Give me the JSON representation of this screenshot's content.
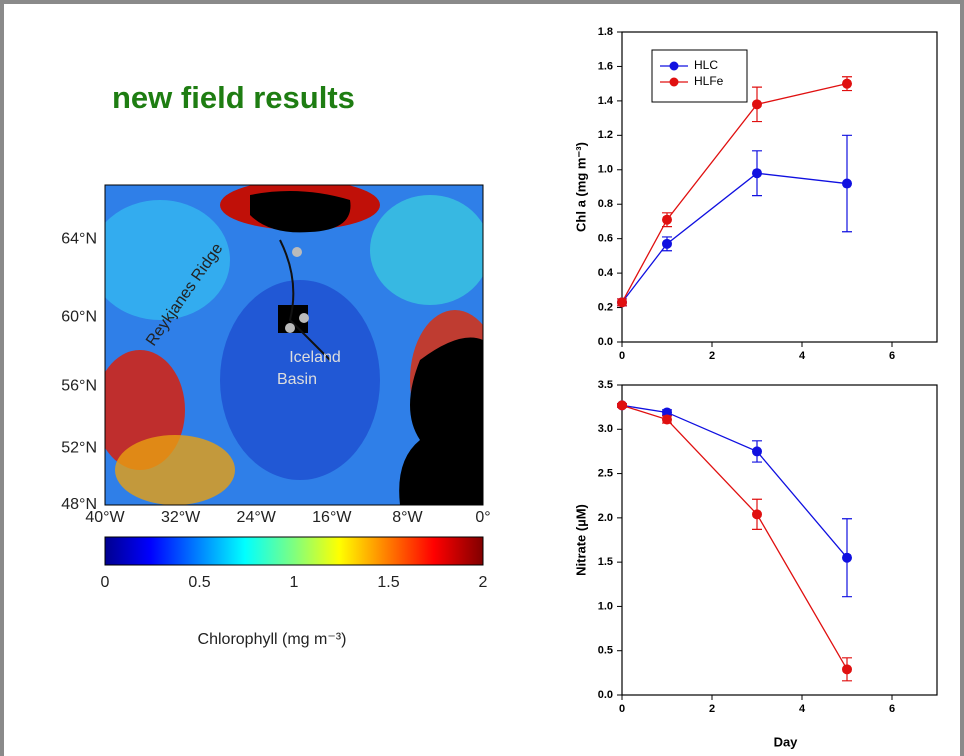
{
  "slide_title": "new field results",
  "map": {
    "ridge_label": "Reykjanes Ridge",
    "basin_label": [
      "Iceland",
      "Basin"
    ],
    "lat_lim": [
      48,
      66.5
    ],
    "lat_ticks": [
      {
        "value": 64,
        "label": "64°N"
      },
      {
        "value": 60,
        "label": "60°N"
      },
      {
        "value": 56,
        "label": "56°N"
      },
      {
        "value": 52,
        "label": "52°N"
      },
      {
        "value": 48,
        "label": "48°N"
      }
    ],
    "lon_lim": [
      -40,
      0
    ],
    "lon_ticks": [
      {
        "value": -40,
        "label": "40°W"
      },
      {
        "value": -32,
        "label": "32°W"
      },
      {
        "value": -24,
        "label": "24°W"
      },
      {
        "value": -16,
        "label": "16°W"
      },
      {
        "value": -8,
        "label": "8°W"
      },
      {
        "value": 0,
        "label": "0°"
      }
    ],
    "colorbar": {
      "lim": [
        0,
        2
      ],
      "ticks": [
        0,
        0.5,
        1,
        1.5,
        2
      ],
      "label": "Chlorophyll (mg m⁻³)"
    }
  },
  "chart_data": [
    {
      "type": "line",
      "ylabel": "Chl a (mg m⁻³)",
      "xlim": [
        0,
        7
      ],
      "xticks": [
        0,
        2,
        4,
        6
      ],
      "ylim": [
        0,
        1.8
      ],
      "yticks": [
        {
          "value": 0,
          "label": "0.0"
        },
        {
          "value": 0.2,
          "label": "0.2"
        },
        {
          "value": 0.4,
          "label": "0.4"
        },
        {
          "value": 0.6,
          "label": "0.6"
        },
        {
          "value": 0.8,
          "label": "0.8"
        },
        {
          "value": 1,
          "label": "1.0"
        },
        {
          "value": 1.2,
          "label": "1.2"
        },
        {
          "value": 1.4,
          "label": "1.4"
        },
        {
          "value": 1.6,
          "label": "1.6"
        },
        {
          "value": 1.8,
          "label": "1.8"
        }
      ],
      "legend": "upper left",
      "x": [
        0,
        1,
        3,
        5
      ],
      "series": [
        {
          "name": "HLC",
          "color": "#1010e0",
          "values": [
            0.23,
            0.57,
            0.98,
            0.92
          ],
          "errors": [
            0.02,
            0.04,
            0.13,
            0.28
          ]
        },
        {
          "name": "HLFe",
          "color": "#e01010",
          "values": [
            0.23,
            0.71,
            1.38,
            1.5
          ],
          "errors": [
            0.02,
            0.04,
            0.1,
            0.04
          ]
        }
      ]
    },
    {
      "type": "line",
      "ylabel": "Nitrate (µM)",
      "xlabel": "Day",
      "xlim": [
        0,
        7
      ],
      "xticks": [
        0,
        2,
        4,
        6
      ],
      "ylim": [
        0,
        3.5
      ],
      "yticks": [
        {
          "value": 0,
          "label": "0.0"
        },
        {
          "value": 0.5,
          "label": "0.5"
        },
        {
          "value": 1,
          "label": "1.0"
        },
        {
          "value": 1.5,
          "label": "1.5"
        },
        {
          "value": 2,
          "label": "2.0"
        },
        {
          "value": 2.5,
          "label": "2.5"
        },
        {
          "value": 3,
          "label": "3.0"
        },
        {
          "value": 3.5,
          "label": "3.5"
        }
      ],
      "x": [
        0,
        1,
        3,
        5
      ],
      "series": [
        {
          "color": "#1010e0",
          "values": [
            3.27,
            3.19,
            2.75,
            1.55
          ],
          "errors": [
            0.02,
            0.03,
            0.12,
            0.44
          ]
        },
        {
          "color": "#e01010",
          "values": [
            3.27,
            3.11,
            2.04,
            0.29
          ],
          "errors": [
            0.02,
            0.04,
            0.17,
            0.13
          ]
        }
      ]
    }
  ]
}
